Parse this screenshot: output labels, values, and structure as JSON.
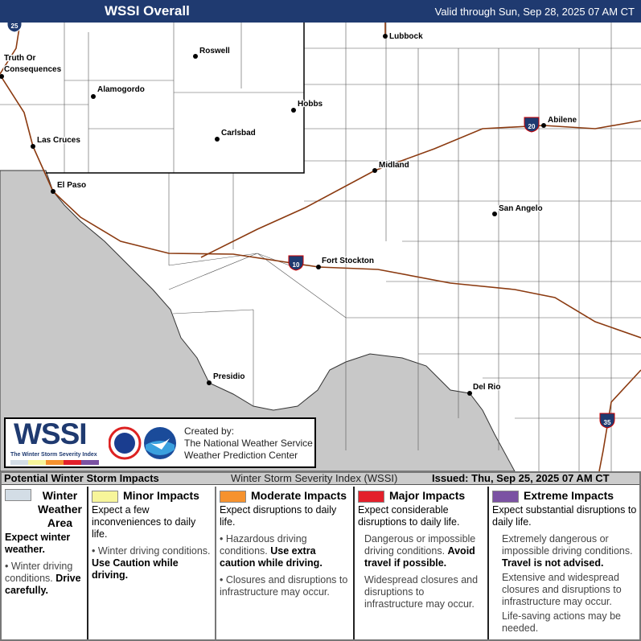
{
  "header": {
    "title": "WSSI Overall",
    "valid": "Valid through Sun, Sep 28, 2025 07 AM CT"
  },
  "map": {
    "colors": {
      "mexico": "#c8c8c8",
      "land": "#ffffff",
      "roads": "#8b3a10"
    },
    "cities": [
      {
        "name": "Truth Or",
        "name2": "Consequences"
      },
      {
        "name": "Roswell"
      },
      {
        "name": "Alamogordo"
      },
      {
        "name": "Hobbs"
      },
      {
        "name": "Carlsbad"
      },
      {
        "name": "Las Cruces"
      },
      {
        "name": "El Paso"
      },
      {
        "name": "Lubbock"
      },
      {
        "name": "Abilene"
      },
      {
        "name": "Midland"
      },
      {
        "name": "San Angelo"
      },
      {
        "name": "Fort Stockton"
      },
      {
        "name": "Presidio"
      },
      {
        "name": "Del Rio"
      }
    ],
    "interstates": [
      "25",
      "20",
      "10",
      "35"
    ]
  },
  "logo": {
    "wssi": "WSSI",
    "subtitle": "The Winter Storm Severity Index",
    "created_by": "Created by:",
    "org1": "The National Weather Service",
    "org2": "Weather Prediction Center"
  },
  "legend": {
    "title": "Potential Winter Storm Impacts",
    "index_name": "Winter Storm Severity Index (WSSI)",
    "issued": "Issued: Thu, Sep 25, 2025 07 AM CT",
    "categories": [
      {
        "label": "Winter Weather Area",
        "color": "#d3dde6",
        "lead": "Expect winter weather.",
        "b1": "Winter driving conditions.",
        "b1b": "Drive carefully."
      },
      {
        "label": "Minor Impacts",
        "color": "#f7f59a",
        "lead": "Expect a few inconveniences to daily life.",
        "b1": "Winter driving conditions.",
        "b1b": "Use Caution while driving."
      },
      {
        "label": "Moderate Impacts",
        "color": "#f6922e",
        "lead": "Expect disruptions to daily life.",
        "b1": "Hazardous driving conditions.",
        "b1b": "Use extra caution while driving.",
        "b2": "Closures and disruptions to infrastructure may occur."
      },
      {
        "label": "Major Impacts",
        "color": "#e3202b",
        "lead": "Expect considerable disruptions to daily life.",
        "b1": "Dangerous or impossible driving conditions.",
        "b1b": "Avoid travel if possible.",
        "b2": "Widespread closures and disruptions to infrastructure may occur."
      },
      {
        "label": "Extreme Impacts",
        "color": "#7b52a3",
        "lead": "Expect substantial disruptions to daily life.",
        "b1": "Extremely dangerous or impossible driving conditions.",
        "b1b": "Travel is not advised.",
        "b2": "Extensive and widespread closures and disruptions to infrastructure may occur.",
        "b3": "Life-saving actions may be needed."
      }
    ]
  }
}
